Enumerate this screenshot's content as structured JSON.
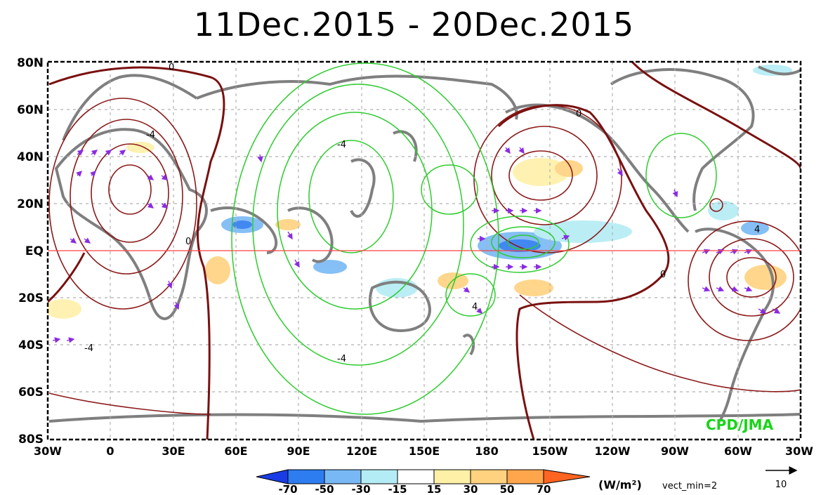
{
  "title": "11Dec.2015 - 20Dec.2015",
  "credit": "CPD/JMA",
  "colors": {
    "positive_contour": "#8b1a1a",
    "negative_contour": "#2ecc2e",
    "land": "#7f7f7f",
    "equator": "#ff4040",
    "vectors": "#8a2be2",
    "vectors_strong": "#2060d0"
  },
  "latitude_labels": [
    "80N",
    "60N",
    "40N",
    "20N",
    "EQ",
    "20S",
    "40S",
    "60S",
    "80S"
  ],
  "longitude_labels": [
    "30W",
    "0",
    "30E",
    "60E",
    "90E",
    "120E",
    "150E",
    "180",
    "150W",
    "120W",
    "90W",
    "60W",
    "30W"
  ],
  "contour_labels": [
    {
      "text": "0"
    },
    {
      "text": "-4"
    },
    {
      "text": "4"
    },
    {
      "text": "0"
    },
    {
      "text": "-4"
    },
    {
      "text": "-4"
    },
    {
      "text": "0"
    },
    {
      "text": "-4"
    },
    {
      "text": "0"
    },
    {
      "text": "4"
    }
  ],
  "colorbar": {
    "ticks": [
      "-70",
      "-50",
      "-30",
      "-15",
      "15",
      "30",
      "50",
      "70"
    ],
    "colors": [
      "#1a3ce6",
      "#2d7cf0",
      "#78b9f5",
      "#b4ecf5",
      "#ffffff",
      "#fff0a8",
      "#ffd27f",
      "#ffa64d",
      "#ff6420"
    ],
    "unit": "(W/m²)"
  },
  "vector_note": "vect_min=2",
  "vector_ref_value": "10"
}
